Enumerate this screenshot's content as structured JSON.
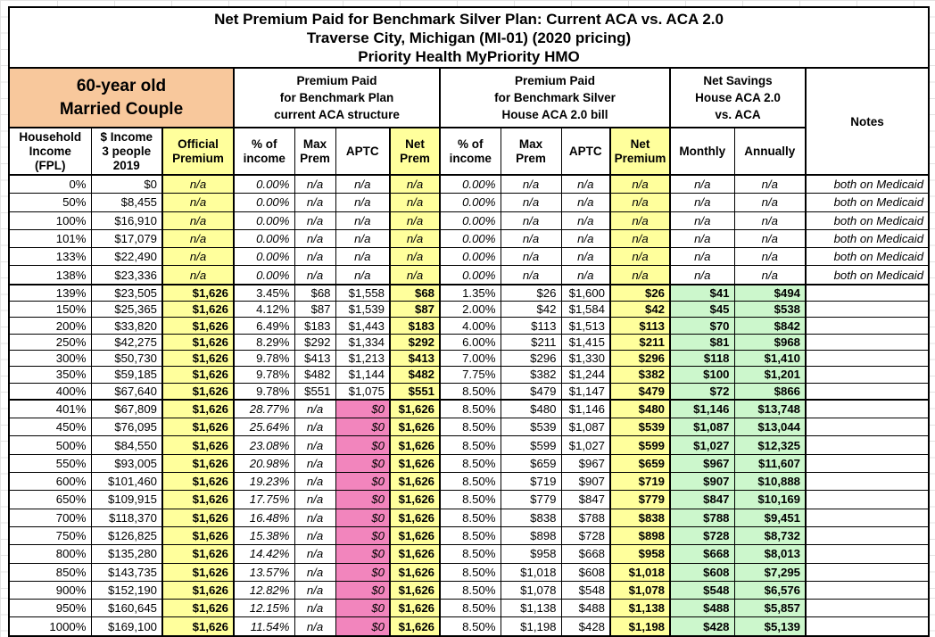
{
  "title": {
    "text": "Net Premium Paid for Benchmark Silver Plan: Current ACA vs. ACA 2.0\nTraverse City, Michigan (MI-01) (2020 pricing)\nPriority Health MyPriority HMO"
  },
  "groups": {
    "household": "60-year old\nMarried Couple",
    "current_aca": "Premium Paid\nfor Benchmark Plan\ncurrent ACA structure",
    "aca20": "Premium Paid\nfor Benchmark Silver\nHouse ACA 2.0 bill",
    "savings": "Net Savings\nHouse ACA 2.0\nvs. ACA",
    "notes": "Notes"
  },
  "columns": [
    "Household\nIncome\n(FPL)",
    "$ Income\n3 people\n2019",
    "Official\nPremium",
    "% of\nincome",
    "Max\nPrem",
    "APTC",
    "Net\nPrem",
    "% of\nincome",
    "Max\nPrem",
    "APTC",
    "Net\nPremium",
    "Monthly",
    "Annually"
  ],
  "column_keys": [
    "fpl",
    "income",
    "official-premium",
    "aca-pct-income",
    "aca-max-prem",
    "aca-aptc",
    "aca-net-prem",
    "aca20-pct-income",
    "aca20-max-prem",
    "aca20-aptc",
    "aca20-net-premium",
    "savings-monthly",
    "savings-annually",
    "notes"
  ],
  "colors": {
    "header_orange": "#F8C89C",
    "highlight_yellow": "#FFFF9C",
    "highlight_pink": "#F285BD",
    "highlight_green": "#CCF7CC",
    "border_black": "#000000"
  },
  "rows": [
    {
      "t": "m",
      "c": [
        "0%",
        "$0",
        "n/a",
        "0.00%",
        "n/a",
        "n/a",
        "n/a",
        "0.00%",
        "n/a",
        "n/a",
        "n/a",
        "n/a",
        "n/a",
        "both on Medicaid"
      ]
    },
    {
      "t": "m",
      "c": [
        "50%",
        "$8,455",
        "n/a",
        "0.00%",
        "n/a",
        "n/a",
        "n/a",
        "0.00%",
        "n/a",
        "n/a",
        "n/a",
        "n/a",
        "n/a",
        "both on Medicaid"
      ]
    },
    {
      "t": "m",
      "c": [
        "100%",
        "$16,910",
        "n/a",
        "0.00%",
        "n/a",
        "n/a",
        "n/a",
        "0.00%",
        "n/a",
        "n/a",
        "n/a",
        "n/a",
        "n/a",
        "both on Medicaid"
      ]
    },
    {
      "t": "m",
      "c": [
        "101%",
        "$17,079",
        "n/a",
        "0.00%",
        "n/a",
        "n/a",
        "n/a",
        "0.00%",
        "n/a",
        "n/a",
        "n/a",
        "n/a",
        "n/a",
        "both on Medicaid"
      ]
    },
    {
      "t": "m",
      "c": [
        "133%",
        "$22,490",
        "n/a",
        "0.00%",
        "n/a",
        "n/a",
        "n/a",
        "0.00%",
        "n/a",
        "n/a",
        "n/a",
        "n/a",
        "n/a",
        "both on Medicaid"
      ]
    },
    {
      "t": "m",
      "thick": true,
      "c": [
        "138%",
        "$23,336",
        "n/a",
        "0.00%",
        "n/a",
        "n/a",
        "n/a",
        "0.00%",
        "n/a",
        "n/a",
        "n/a",
        "n/a",
        "n/a",
        "both on Medicaid"
      ]
    },
    {
      "t": "s",
      "c": [
        "139%",
        "$23,505",
        "$1,626",
        "3.45%",
        "$68",
        "$1,558",
        "$68",
        "1.35%",
        "$26",
        "$1,600",
        "$26",
        "$41",
        "$494",
        ""
      ]
    },
    {
      "t": "s",
      "c": [
        "150%",
        "$25,365",
        "$1,626",
        "4.12%",
        "$87",
        "$1,539",
        "$87",
        "2.00%",
        "$42",
        "$1,584",
        "$42",
        "$45",
        "$538",
        ""
      ]
    },
    {
      "t": "s",
      "c": [
        "200%",
        "$33,820",
        "$1,626",
        "6.49%",
        "$183",
        "$1,443",
        "$183",
        "4.00%",
        "$113",
        "$1,513",
        "$113",
        "$70",
        "$842",
        ""
      ]
    },
    {
      "t": "s",
      "c": [
        "250%",
        "$42,275",
        "$1,626",
        "8.29%",
        "$292",
        "$1,334",
        "$292",
        "6.00%",
        "$211",
        "$1,415",
        "$211",
        "$81",
        "$968",
        ""
      ]
    },
    {
      "t": "s",
      "c": [
        "300%",
        "$50,730",
        "$1,626",
        "9.78%",
        "$413",
        "$1,213",
        "$413",
        "7.00%",
        "$296",
        "$1,330",
        "$296",
        "$118",
        "$1,410",
        ""
      ]
    },
    {
      "t": "s",
      "c": [
        "350%",
        "$59,185",
        "$1,626",
        "9.78%",
        "$482",
        "$1,144",
        "$482",
        "7.75%",
        "$382",
        "$1,244",
        "$382",
        "$100",
        "$1,201",
        ""
      ]
    },
    {
      "t": "s",
      "thick": true,
      "c": [
        "400%",
        "$67,640",
        "$1,626",
        "9.78%",
        "$551",
        "$1,075",
        "$551",
        "8.50%",
        "$479",
        "$1,147",
        "$479",
        "$72",
        "$866",
        ""
      ]
    },
    {
      "t": "o",
      "c": [
        "401%",
        "$67,809",
        "$1,626",
        "28.77%",
        "n/a",
        "$0",
        "$1,626",
        "8.50%",
        "$480",
        "$1,146",
        "$480",
        "$1,146",
        "$13,748",
        ""
      ]
    },
    {
      "t": "o",
      "c": [
        "450%",
        "$76,095",
        "$1,626",
        "25.64%",
        "n/a",
        "$0",
        "$1,626",
        "8.50%",
        "$539",
        "$1,087",
        "$539",
        "$1,087",
        "$13,044",
        ""
      ]
    },
    {
      "t": "o",
      "c": [
        "500%",
        "$84,550",
        "$1,626",
        "23.08%",
        "n/a",
        "$0",
        "$1,626",
        "8.50%",
        "$599",
        "$1,027",
        "$599",
        "$1,027",
        "$12,325",
        ""
      ]
    },
    {
      "t": "o",
      "c": [
        "550%",
        "$93,005",
        "$1,626",
        "20.98%",
        "n/a",
        "$0",
        "$1,626",
        "8.50%",
        "$659",
        "$967",
        "$659",
        "$967",
        "$11,607",
        ""
      ]
    },
    {
      "t": "o",
      "c": [
        "600%",
        "$101,460",
        "$1,626",
        "19.23%",
        "n/a",
        "$0",
        "$1,626",
        "8.50%",
        "$719",
        "$907",
        "$719",
        "$907",
        "$10,888",
        ""
      ]
    },
    {
      "t": "o",
      "c": [
        "650%",
        "$109,915",
        "$1,626",
        "17.75%",
        "n/a",
        "$0",
        "$1,626",
        "8.50%",
        "$779",
        "$847",
        "$779",
        "$847",
        "$10,169",
        ""
      ]
    },
    {
      "t": "o",
      "c": [
        "700%",
        "$118,370",
        "$1,626",
        "16.48%",
        "n/a",
        "$0",
        "$1,626",
        "8.50%",
        "$838",
        "$788",
        "$838",
        "$788",
        "$9,451",
        ""
      ]
    },
    {
      "t": "o",
      "c": [
        "750%",
        "$126,825",
        "$1,626",
        "15.38%",
        "n/a",
        "$0",
        "$1,626",
        "8.50%",
        "$898",
        "$728",
        "$898",
        "$728",
        "$8,732",
        ""
      ]
    },
    {
      "t": "o",
      "c": [
        "800%",
        "$135,280",
        "$1,626",
        "14.42%",
        "n/a",
        "$0",
        "$1,626",
        "8.50%",
        "$958",
        "$668",
        "$958",
        "$668",
        "$8,013",
        ""
      ]
    },
    {
      "t": "o",
      "c": [
        "850%",
        "$143,735",
        "$1,626",
        "13.57%",
        "n/a",
        "$0",
        "$1,626",
        "8.50%",
        "$1,018",
        "$608",
        "$1,018",
        "$608",
        "$7,295",
        ""
      ]
    },
    {
      "t": "o",
      "c": [
        "900%",
        "$152,190",
        "$1,626",
        "12.82%",
        "n/a",
        "$0",
        "$1,626",
        "8.50%",
        "$1,078",
        "$548",
        "$1,078",
        "$548",
        "$6,576",
        ""
      ]
    },
    {
      "t": "o",
      "c": [
        "950%",
        "$160,645",
        "$1,626",
        "12.15%",
        "n/a",
        "$0",
        "$1,626",
        "8.50%",
        "$1,138",
        "$488",
        "$1,138",
        "$488",
        "$5,857",
        ""
      ]
    },
    {
      "t": "o",
      "c": [
        "1000%",
        "$169,100",
        "$1,626",
        "11.54%",
        "n/a",
        "$0",
        "$1,626",
        "8.50%",
        "$1,198",
        "$428",
        "$1,198",
        "$428",
        "$5,139",
        ""
      ]
    }
  ]
}
